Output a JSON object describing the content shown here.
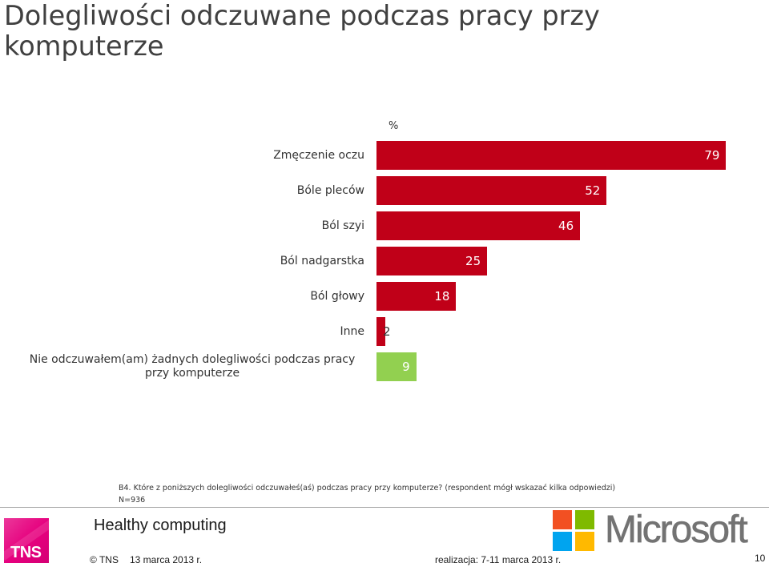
{
  "chart_data": {
    "type": "bar",
    "orientation": "horizontal",
    "title": "Dolegliwości odczuwane podczas pracy przy komputerze",
    "unit_label": "%",
    "categories": [
      "Zmęczenie oczu",
      "Bóle pleców",
      "Ból szyi",
      "Ból nadgarstka",
      "Ból głowy",
      "Inne",
      "Nie odczuwałem(am) żadnych dolegliwości podczas pracy przy komputerze"
    ],
    "values": [
      79,
      52,
      46,
      25,
      18,
      2,
      9
    ],
    "bar_colors": [
      "#C00018",
      "#C00018",
      "#C00018",
      "#C00018",
      "#C00018",
      "#C00018",
      "#92D050"
    ],
    "xlim": [
      0,
      80
    ],
    "grid": false,
    "axes_visible": false,
    "data_labels": true
  },
  "note": {
    "question": "B4. Które z poniższych dolegliwości odczuwałeś(aś) podczas pracy przy komputerze? (respondent mógł wskazać kilka odpowiedzi)",
    "sample": "N=936"
  },
  "footer": {
    "project": "Healthy computing",
    "copyright": "© TNS",
    "date": "13 marca 2013 r.",
    "fieldwork": "realizacja: 7-11 marca 2013 r.",
    "page_number": "10"
  },
  "logos": {
    "tns": {
      "text": "TNS",
      "color": "#E6007E"
    },
    "microsoft": {
      "text": "Microsoft",
      "icon": "windows-flag-icon",
      "text_color": "#737373",
      "flag_colors": [
        "#F25022",
        "#7FBA00",
        "#00A4EF",
        "#FFB900"
      ]
    }
  },
  "colors": {
    "title": "#404040",
    "text": "#333333",
    "divider": "#A6A6A6"
  }
}
